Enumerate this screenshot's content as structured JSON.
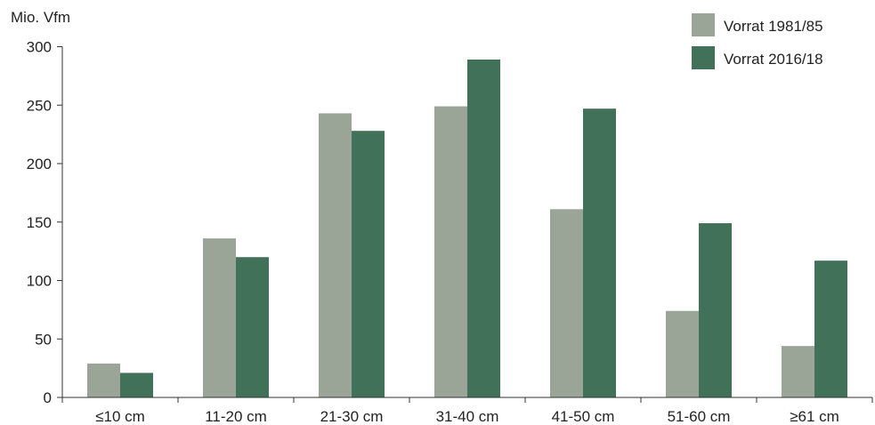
{
  "chart_data": {
    "type": "bar",
    "ylabel": "Mio. Vfm",
    "xlabel": "",
    "ylim": [
      0,
      300
    ],
    "yticks": [
      0,
      50,
      100,
      150,
      200,
      250,
      300
    ],
    "grid": false,
    "legend_position": "top-right",
    "categories": [
      "≤10 cm",
      "11-20 cm",
      "21-30 cm",
      "31-40 cm",
      "41-50 cm",
      "51-60 cm",
      "≥61 cm"
    ],
    "series": [
      {
        "name": "Vorrat 1981/85",
        "color": "#9aa598",
        "values": [
          29,
          136,
          243,
          249,
          161,
          74,
          44
        ]
      },
      {
        "name": "Vorrat 2016/18",
        "color": "#417259",
        "values": [
          21,
          120,
          228,
          289,
          247,
          149,
          117
        ]
      }
    ]
  }
}
